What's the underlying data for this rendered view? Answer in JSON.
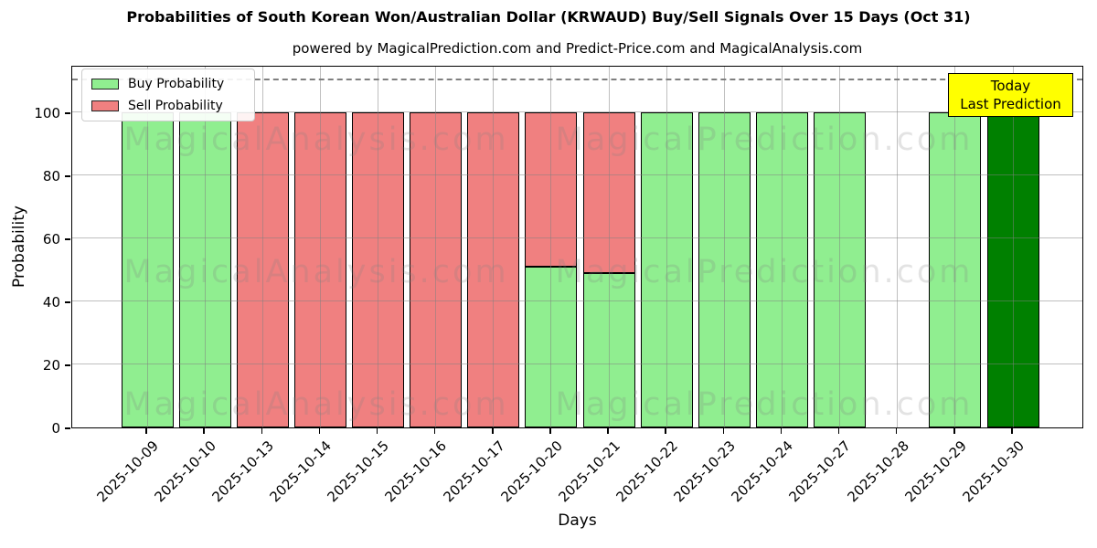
{
  "watermarks": {
    "left": "MagicalAnalysis.com",
    "right": "MagicalPrediction.com"
  },
  "legend": {
    "items": [
      {
        "label": "Buy Probability",
        "color": "#90ee90"
      },
      {
        "label": "Sell Probability",
        "color": "#f08080"
      }
    ]
  },
  "annotation": {
    "line1": "Today",
    "line2": "Last Prediction",
    "bg": "#ffff00",
    "border": "#000000"
  },
  "axes": {
    "ylabel": "Probability",
    "xlabel": "Days",
    "yticks": [
      0,
      20,
      40,
      60,
      80,
      100
    ],
    "ymax": 115,
    "grid": true,
    "threshold_dashed_y": 110
  },
  "chart_data": {
    "type": "bar",
    "stacked": true,
    "title": "Probabilities of South Korean Won/Australian Dollar (KRWAUD) Buy/Sell Signals Over 15 Days (Oct 31)",
    "subtitle": "powered by MagicalPrediction.com and Predict-Price.com and MagicalAnalysis.com",
    "xlabel": "Days",
    "ylabel": "Probability",
    "ylim": [
      0,
      115
    ],
    "grid": true,
    "legend_position": "upper left",
    "categories": [
      "2025-10-09",
      "2025-10-10",
      "2025-10-13",
      "2025-10-14",
      "2025-10-15",
      "2025-10-16",
      "2025-10-17",
      "2025-10-20",
      "2025-10-21",
      "2025-10-22",
      "2025-10-23",
      "2025-10-24",
      "2025-10-27",
      "2025-10-28",
      "2025-10-29",
      "2025-10-30"
    ],
    "series": [
      {
        "name": "Buy Probability",
        "color": "#90ee90",
        "values": [
          100,
          100,
          0,
          0,
          0,
          0,
          0,
          51,
          49,
          100,
          100,
          100,
          100,
          0,
          100,
          100
        ]
      },
      {
        "name": "Sell Probability",
        "color": "#f08080",
        "values": [
          0,
          0,
          100,
          100,
          100,
          100,
          100,
          49,
          51,
          0,
          0,
          0,
          0,
          0,
          0,
          0
        ]
      }
    ],
    "today_index": 15,
    "today_color": "#008000",
    "threshold_line_y": 110
  }
}
